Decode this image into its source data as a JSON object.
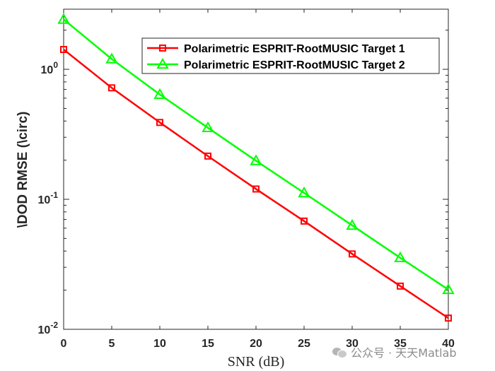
{
  "chart_data": {
    "type": "line",
    "x": [
      0,
      5,
      10,
      15,
      20,
      25,
      30,
      35,
      40
    ],
    "series": [
      {
        "name": "Polarimetric ESPRIT-RootMUSIC Target 1",
        "values": [
          1.42,
          0.72,
          0.39,
          0.215,
          0.12,
          0.068,
          0.038,
          0.0215,
          0.0122
        ],
        "color": "#ff0000",
        "marker": "square"
      },
      {
        "name": "Polarimetric ESPRIT-RootMUSIC Target 2",
        "values": [
          2.42,
          1.2,
          0.64,
          0.355,
          0.198,
          0.112,
          0.063,
          0.0355,
          0.0202
        ],
        "color": "#00ff00",
        "marker": "triangle"
      }
    ],
    "xlabel": "SNR (dB)",
    "ylabel": "\\DOD RMSE (\\circ)",
    "xlim": [
      0,
      40
    ],
    "ylim": [
      0.01,
      2.9
    ],
    "yscale": "log",
    "xticks": [
      "0",
      "5",
      "10",
      "15",
      "20",
      "25",
      "30",
      "35",
      "40"
    ],
    "yticks": [
      {
        "value": 1,
        "base": "10",
        "exp": "0"
      },
      {
        "value": 0.1,
        "base": "10",
        "exp": "-1"
      },
      {
        "value": 0.01,
        "base": "10",
        "exp": "-2"
      }
    ],
    "grid": false,
    "legend_position": "top-right"
  },
  "watermark": {
    "icon": "wechat-icon",
    "text": "公众号 · 天天Matlab"
  }
}
